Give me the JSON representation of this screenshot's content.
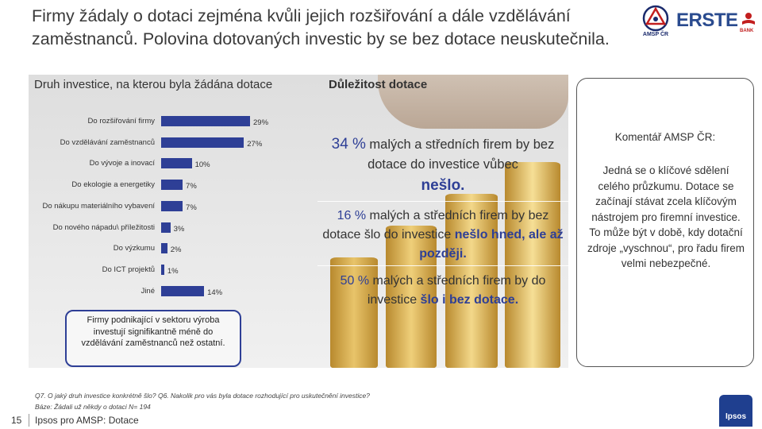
{
  "slide": {
    "title": "Firmy žádaly o dotaci zejména kvůli jejich rozšiřování a dále vzdělávání zaměstnanců. Polovina dotovaných investic by se bez dotace neuskutečnila.",
    "page_number": "15",
    "footer": "Ipsos pro AMSP: Dotace"
  },
  "logos": {
    "amsp_text": "AMSP ČR",
    "erste_text": "ERSTE",
    "bank_text": "BANK",
    "ipsos_text": "Ipsos"
  },
  "chart_data": {
    "type": "bar",
    "title": "Druh investice, na kterou byla žádána dotace",
    "orientation": "horizontal",
    "categories": [
      "Do rozšiřování firmy",
      "Do vzdělávání zaměstnanců",
      "Do vývoje a inovací",
      "Do ekologie a energetiky",
      "Do nákupu materiálního vybavení",
      "Do nového nápadu\\ příležitosti",
      "Do výzkumu",
      "Do ICT projektů",
      "Jiné"
    ],
    "values": [
      29,
      27,
      10,
      7,
      7,
      3,
      2,
      1,
      14
    ],
    "value_labels": [
      "29%",
      "27%",
      "10%",
      "7%",
      "7%",
      "3%",
      "2%",
      "1%",
      "14%"
    ],
    "xlim": [
      0,
      29
    ],
    "color": "#2e3f96"
  },
  "importance": {
    "heading": "Důležitost dotace",
    "items": [
      {
        "pct": "34 %",
        "text": "malých a středních firem by bez dotace do investice vůbec",
        "highlight": "nešlo."
      },
      {
        "pct": "16 %",
        "text": "malých a středních firem by bez dotace šlo do investice",
        "highlight": "nešlo hned, ale až později."
      },
      {
        "pct": "50 %",
        "text": "malých a středních firem by do investice",
        "highlight": "šlo i bez dotace."
      }
    ]
  },
  "callout": {
    "text": "Firmy podnikající v sektoru výroba investují signifikantně méně do vzdělávání zaměstnanců než ostatní."
  },
  "comment": {
    "title": "Komentář AMSP ČR:",
    "body": "Jedná se o klíčové sdělení celého průzkumu. Dotace se začínají stávat zcela klíčovým nástrojem pro firemní investice. To může být v době, kdy dotační zdroje „vyschnou“, pro řadu firem velmi nebezpečné."
  },
  "footnote": {
    "line1": "Q7. O jaký druh investice konkrétně šlo? Q6. Nakolik pro vás byla dotace rozhodující pro uskutečnění investice?",
    "line2": "Báze: Žádali už někdy o dotaci N= 194"
  },
  "colors": {
    "accent": "#2e3f96",
    "erste_red": "#c21e1e"
  }
}
